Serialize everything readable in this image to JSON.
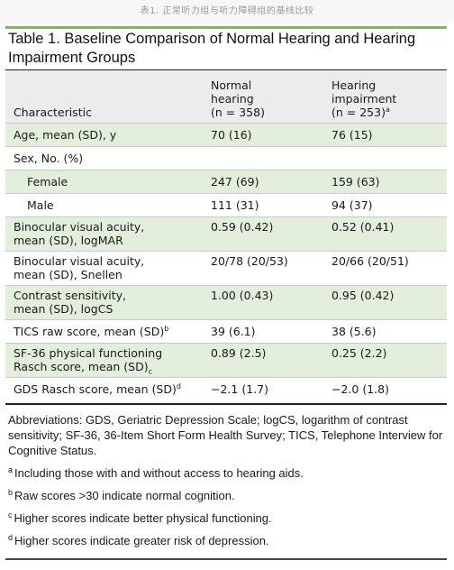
{
  "caption": "表1. 正常听力组与听力障碍组的基线比较",
  "title": "Table 1. Baseline Comparison of Normal Hearing and Hearing Impairment Groups",
  "columns": {
    "characteristic": "Characteristic",
    "normal_line1": "Normal",
    "normal_line2": "hearing",
    "normal_line3": "(n = 358)",
    "impair_line1": "Hearing",
    "impair_line2": "impairment",
    "impair_line3": "(n = 253)",
    "impair_mark": "a"
  },
  "rows": [
    {
      "label": "Age, mean (SD), y",
      "label2": "",
      "mark": "",
      "normal": "70 (16)",
      "impairment": "76 (15)"
    },
    {
      "label": "Sex, No. (%)",
      "label2": "",
      "mark": "",
      "normal": "",
      "impairment": ""
    },
    {
      "label": "Female",
      "label2": "",
      "mark": "",
      "normal": "247 (69)",
      "impairment": "159 (63)"
    },
    {
      "label": "Male",
      "label2": "",
      "mark": "",
      "normal": "111 (31)",
      "impairment": "94 (37)"
    },
    {
      "label": "Binocular visual acuity,",
      "label2": "mean (SD), logMAR",
      "mark": "",
      "normal": "0.59 (0.42)",
      "impairment": "0.52 (0.41)"
    },
    {
      "label": "Binocular visual acuity,",
      "label2": "mean (SD), Snellen",
      "mark": "",
      "normal": "20/78 (20/53)",
      "impairment": "20/66 (20/51)"
    },
    {
      "label": "Contrast sensitivity,",
      "label2": "mean (SD), logCS",
      "mark": "",
      "normal": "1.00 (0.43)",
      "impairment": "0.95 (0.42)"
    },
    {
      "label": "TICS raw score, mean (SD)",
      "label2": "",
      "mark": "b",
      "normal": "39 (6.1)",
      "impairment": "38 (5.6)"
    },
    {
      "label": "SF-36 physical functioning",
      "label2": "Rasch score, mean (SD)",
      "mark": "c",
      "normal": "0.89 (2.5)",
      "impairment": "0.25 (2.2)"
    },
    {
      "label": "GDS Rasch score, mean (SD)",
      "label2": "",
      "mark": "d",
      "normal": "−2.1 (1.7)",
      "impairment": "−2.0 (1.8)"
    }
  ],
  "footnotes": {
    "abbreviations": "Abbreviations: GDS, Geriatric Depression Scale; logCS, logarithm of contrast sensitivity; SF-36, 36-Item Short Form Health Survey; TICS, Telephone Interview for Cognitive Status.",
    "notes": [
      {
        "mark": "a",
        "text": "Including those with and without access to hearing aids."
      },
      {
        "mark": "b",
        "text": "Raw scores >30 indicate normal cognition."
      },
      {
        "mark": "c",
        "text": "Higher scores indicate better physical functioning."
      },
      {
        "mark": "d",
        "text": "Higher scores indicate greater risk of depression."
      }
    ]
  },
  "colors": {
    "accent_rule": "#7cbd4a",
    "stripe": "#e4eedc",
    "header_bg": "#ececec"
  }
}
